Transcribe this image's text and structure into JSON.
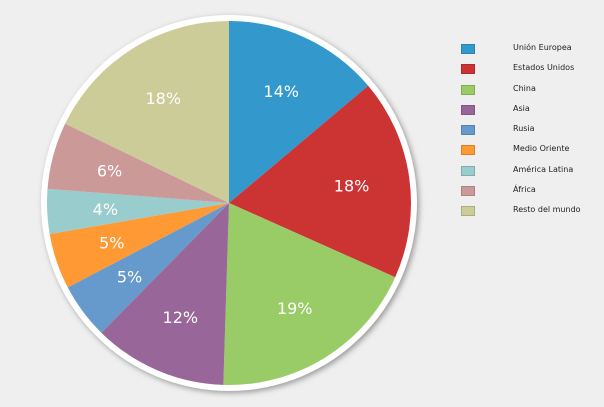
{
  "chart_data": {
    "type": "pie",
    "start": "top",
    "direction": "clockwise",
    "legend_position": "right",
    "slices": [
      {
        "label": "Unión Europea",
        "value": 14,
        "data_label": "14%",
        "color": "#3399cc"
      },
      {
        "label": "Estados Unidos",
        "value": 18,
        "data_label": "18%",
        "color": "#cc3333"
      },
      {
        "label": "China",
        "value": 19,
        "data_label": "19%",
        "color": "#99cc66"
      },
      {
        "label": "Asia",
        "value": 12,
        "data_label": "12%",
        "color": "#996699"
      },
      {
        "label": "Rusia",
        "value": 5,
        "data_label": "5%",
        "color": "#6699cc"
      },
      {
        "label": "Medio Oriente",
        "value": 5,
        "data_label": "5%",
        "color": "#ff9933"
      },
      {
        "label": "América Latina",
        "value": 4,
        "data_label": "4%",
        "color": "#99cccc"
      },
      {
        "label": "África",
        "value": 6,
        "data_label": "6%",
        "color": "#cc9999"
      },
      {
        "label": "Resto del mundo",
        "value": 18,
        "data_label": "18%",
        "color": "#cccc99"
      }
    ]
  }
}
